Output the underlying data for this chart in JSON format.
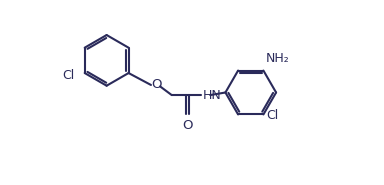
{
  "bg_color": "#ffffff",
  "line_color": "#2a2a5a",
  "line_width": 1.5,
  "font_size": 9.0,
  "fig_width": 3.84,
  "fig_height": 1.85,
  "dpi": 100,
  "xlim": [
    0,
    14
  ],
  "ylim": [
    0,
    10
  ]
}
